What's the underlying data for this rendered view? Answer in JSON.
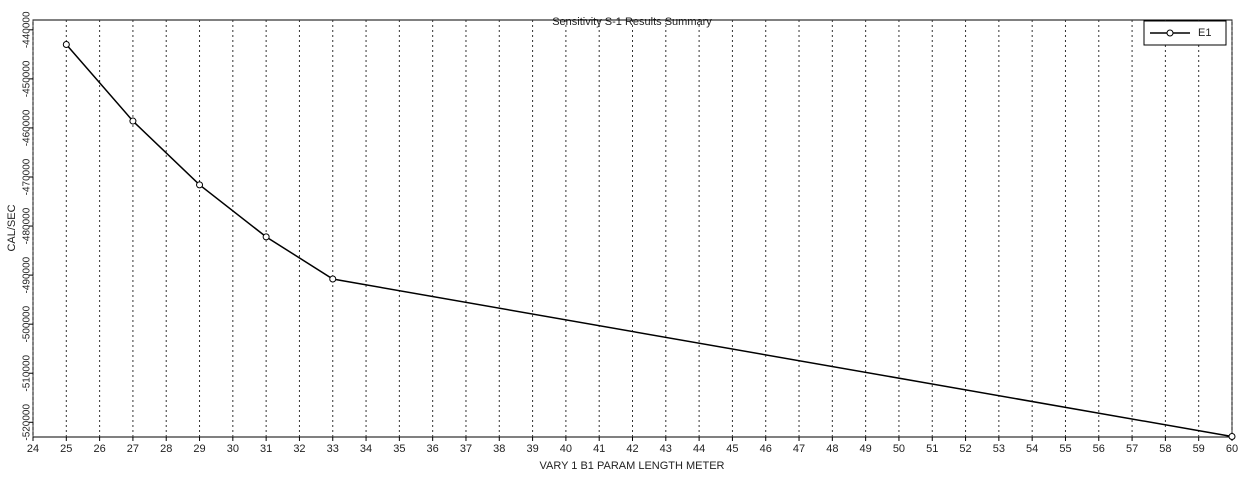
{
  "chart_data": {
    "type": "line",
    "title": "Sensitivity S-1 Results Summary",
    "x_label": "VARY 1 B1 PARAM LENGTH METER",
    "y_label": "CAL/SEC",
    "x": [
      25,
      27,
      29,
      31,
      33,
      60
    ],
    "series": [
      {
        "name": "E1",
        "color": "#000000",
        "values": [
          -443000,
          -458600,
          -471600,
          -482200,
          -490800,
          -522900
        ]
      }
    ],
    "xlim": [
      24,
      60
    ],
    "ylim": [
      -523000,
      -438000
    ],
    "xticks": [
      24,
      25,
      26,
      27,
      28,
      29,
      30,
      31,
      32,
      33,
      34,
      35,
      36,
      37,
      38,
      39,
      40,
      41,
      42,
      43,
      44,
      45,
      46,
      47,
      48,
      49,
      50,
      51,
      52,
      53,
      54,
      55,
      56,
      57,
      58,
      59,
      60
    ],
    "yticks": [
      -440000,
      -450000,
      -460000,
      -470000,
      -480000,
      -490000,
      -500000,
      -510000,
      -520000
    ],
    "grid": true,
    "legend": "upper right"
  }
}
